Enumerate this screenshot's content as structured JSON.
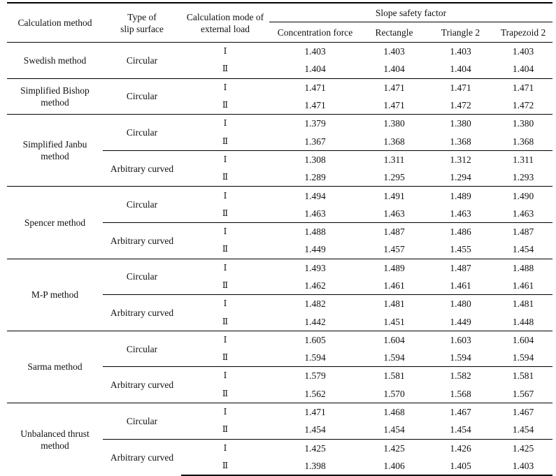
{
  "headers": {
    "calc_method": "Calculation method",
    "slip_surface": "Type of\nslip surface",
    "load_mode": "Calculation mode of\nexternal load",
    "safety_factor": "Slope safety factor",
    "columns": [
      "Concentration force",
      "Rectangle",
      "Triangle 2",
      "Trapezoid 2"
    ]
  },
  "groups": [
    {
      "method": "Swedish method",
      "subs": [
        {
          "surface": "Circular",
          "rows": [
            {
              "mode": "Ⅰ",
              "values": [
                "1.403",
                "1.403",
                "1.403",
                "1.403"
              ]
            },
            {
              "mode": "Ⅱ",
              "values": [
                "1.404",
                "1.404",
                "1.404",
                "1.404"
              ]
            }
          ]
        }
      ]
    },
    {
      "method": "Simplified Bishop\nmethod",
      "subs": [
        {
          "surface": "Circular",
          "rows": [
            {
              "mode": "Ⅰ",
              "values": [
                "1.471",
                "1.471",
                "1.471",
                "1.471"
              ]
            },
            {
              "mode": "Ⅱ",
              "values": [
                "1.471",
                "1.471",
                "1.472",
                "1.472"
              ]
            }
          ]
        }
      ]
    },
    {
      "method": "Simplified Janbu\nmethod",
      "subs": [
        {
          "surface": "Circular",
          "rows": [
            {
              "mode": "Ⅰ",
              "values": [
                "1.379",
                "1.380",
                "1.380",
                "1.380"
              ]
            },
            {
              "mode": "Ⅱ",
              "values": [
                "1.367",
                "1.368",
                "1.368",
                "1.368"
              ]
            }
          ]
        },
        {
          "surface": "Arbitrary curved",
          "rows": [
            {
              "mode": "Ⅰ",
              "values": [
                "1.308",
                "1.311",
                "1.312",
                "1.311"
              ]
            },
            {
              "mode": "Ⅱ",
              "values": [
                "1.289",
                "1.295",
                "1.294",
                "1.293"
              ]
            }
          ]
        }
      ]
    },
    {
      "method": "Spencer method",
      "subs": [
        {
          "surface": "Circular",
          "rows": [
            {
              "mode": "Ⅰ",
              "values": [
                "1.494",
                "1.491",
                "1.489",
                "1.490"
              ]
            },
            {
              "mode": "Ⅱ",
              "values": [
                "1.463",
                "1.463",
                "1.463",
                "1.463"
              ]
            }
          ]
        },
        {
          "surface": "Arbitrary curved",
          "rows": [
            {
              "mode": "Ⅰ",
              "values": [
                "1.488",
                "1.487",
                "1.486",
                "1.487"
              ]
            },
            {
              "mode": "Ⅱ",
              "values": [
                "1.449",
                "1.457",
                "1.455",
                "1.454"
              ]
            }
          ]
        }
      ]
    },
    {
      "method": "M-P method",
      "subs": [
        {
          "surface": "Circular",
          "rows": [
            {
              "mode": "Ⅰ",
              "values": [
                "1.493",
                "1.489",
                "1.487",
                "1.488"
              ]
            },
            {
              "mode": "Ⅱ",
              "values": [
                "1.462",
                "1.461",
                "1.461",
                "1.461"
              ]
            }
          ]
        },
        {
          "surface": "Arbitrary curved",
          "rows": [
            {
              "mode": "Ⅰ",
              "values": [
                "1.482",
                "1.481",
                "1.480",
                "1.481"
              ]
            },
            {
              "mode": "Ⅱ",
              "values": [
                "1.442",
                "1.451",
                "1.449",
                "1.448"
              ]
            }
          ]
        }
      ]
    },
    {
      "method": "Sarma method",
      "subs": [
        {
          "surface": "Circular",
          "rows": [
            {
              "mode": "Ⅰ",
              "values": [
                "1.605",
                "1.604",
                "1.603",
                "1.604"
              ]
            },
            {
              "mode": "Ⅱ",
              "values": [
                "1.594",
                "1.594",
                "1.594",
                "1.594"
              ]
            }
          ]
        },
        {
          "surface": "Arbitrary curved",
          "rows": [
            {
              "mode": "Ⅰ",
              "values": [
                "1.579",
                "1.581",
                "1.582",
                "1.581"
              ]
            },
            {
              "mode": "Ⅱ",
              "values": [
                "1.562",
                "1.570",
                "1.568",
                "1.567"
              ]
            }
          ]
        }
      ]
    },
    {
      "method": "Unbalanced thrust\nmethod",
      "subs": [
        {
          "surface": "Circular",
          "rows": [
            {
              "mode": "Ⅰ",
              "values": [
                "1.471",
                "1.468",
                "1.467",
                "1.467"
              ]
            },
            {
              "mode": "Ⅱ",
              "values": [
                "1.454",
                "1.454",
                "1.454",
                "1.454"
              ]
            }
          ]
        },
        {
          "surface": "Arbitrary curved",
          "rows": [
            {
              "mode": "Ⅰ",
              "values": [
                "1.425",
                "1.425",
                "1.426",
                "1.425"
              ]
            },
            {
              "mode": "Ⅱ",
              "values": [
                "1.398",
                "1.406",
                "1.405",
                "1.403"
              ]
            }
          ]
        }
      ]
    }
  ]
}
